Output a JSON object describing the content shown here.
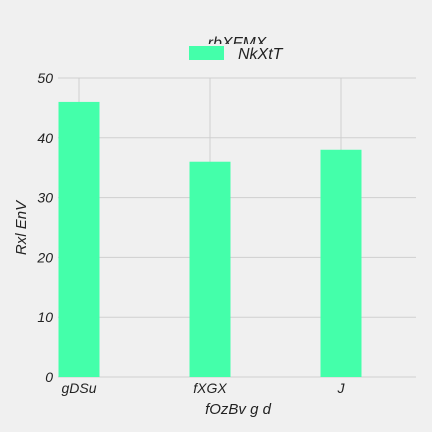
{
  "chart_data": {
    "type": "bar",
    "title": "rbXFMX",
    "xlabel": "fOzBv g d",
    "ylabel": "Rxl EnV",
    "categories": [
      "gDSu",
      "fXGX",
      "J"
    ],
    "series": [
      {
        "name": "NkXtT",
        "values": [
          46,
          36,
          38
        ]
      }
    ],
    "ylim": [
      0,
      50
    ],
    "yticks": [
      0,
      10,
      20,
      30,
      40,
      50
    ],
    "grid": true,
    "legend_position": "top-center",
    "colors": {
      "bar": "#44ffaa",
      "background": "#f0f0f0",
      "grid": "#cfcfcf"
    }
  }
}
